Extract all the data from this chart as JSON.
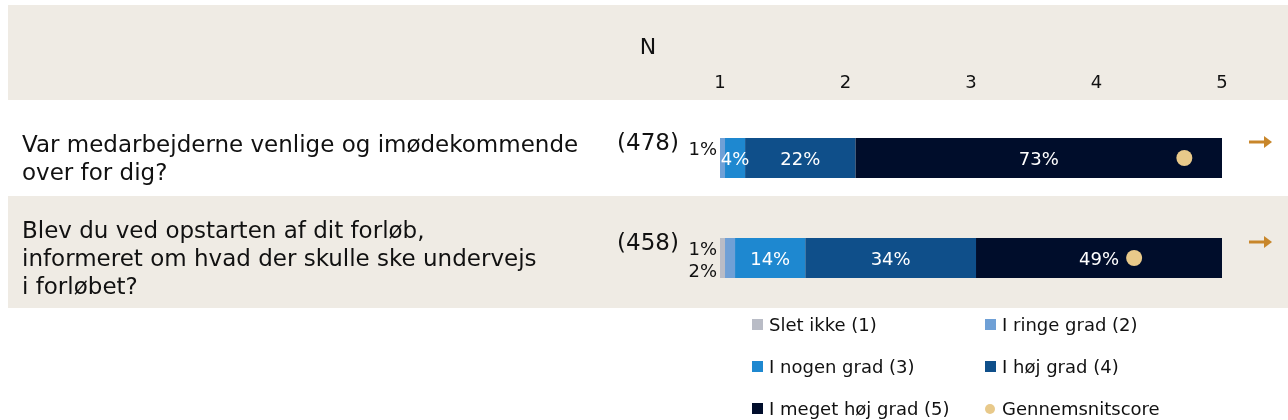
{
  "chart_data": {
    "type": "bar",
    "orientation": "horizontal",
    "stacked": true,
    "categories": [
      "Var medarbejderne venlige og imødekommende over for dig?",
      "Blev du ved opstarten af dit forløb, informeret om hvad der skulle ske undervejs i forløbet?"
    ],
    "xlim": [
      0,
      100
    ],
    "tick_labels": "x2",
    "x2lim": [
      1,
      5
    ],
    "x2ticks": [
      1,
      2,
      3,
      4,
      5
    ],
    "series": [
      {
        "name": "Slet ikke (1)",
        "color": "#b9bcc6",
        "values": [
          0,
          1
        ],
        "value_labels": [
          null,
          "1%"
        ]
      },
      {
        "name": "I ringe grad (2)",
        "color": "#6fa0d6",
        "values": [
          1,
          2
        ],
        "value_labels": [
          "1%",
          "2%"
        ]
      },
      {
        "name": "I nogen grad (3)",
        "color": "#1e88d0",
        "values": [
          4,
          14
        ],
        "value_labels": [
          "4%",
          "14%"
        ]
      },
      {
        "name": "I høj grad (4)",
        "color": "#0f4f8a",
        "values": [
          22,
          34
        ],
        "value_labels": [
          "22%",
          "34%"
        ]
      },
      {
        "name": "I meget høj grad (5)",
        "color": "#000d2b",
        "values": [
          73,
          49
        ],
        "value_labels": [
          "73%",
          "49%"
        ]
      },
      {
        "name": "Gennemsnitscore",
        "type": "scatter",
        "axis": "x2",
        "marker": "circle",
        "color": "#e8c98a",
        "values": [
          4.7,
          4.3
        ]
      }
    ],
    "annotations": [
      "N",
      "(478)",
      "(458)"
    ],
    "legend": "bottom"
  }
}
